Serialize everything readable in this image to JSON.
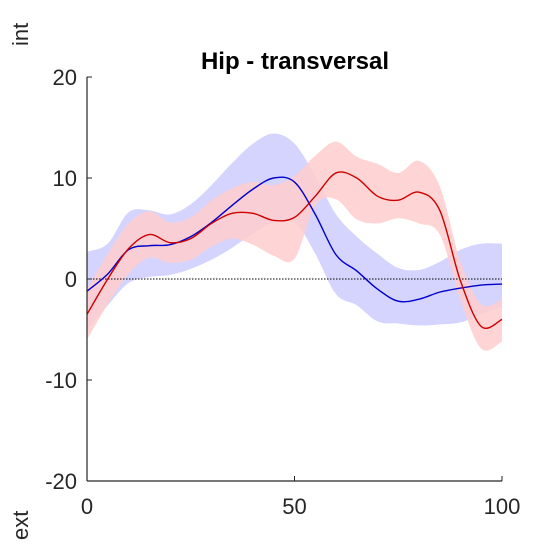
{
  "chart_data": {
    "type": "line",
    "title": "Hip - transversal",
    "xlabel": "",
    "ylabel": "",
    "side_label_top": "int",
    "side_label_bottom": "ext",
    "xlim": [
      0,
      100
    ],
    "ylim": [
      -20,
      20
    ],
    "xticks": [
      "0",
      "50",
      "100"
    ],
    "yticks": [
      "20",
      "10",
      "0",
      "-10",
      "-20"
    ],
    "grid": false,
    "legend": "none",
    "zero_line": true,
    "x": [
      0,
      5,
      10,
      15,
      20,
      25,
      30,
      35,
      40,
      45,
      50,
      55,
      60,
      65,
      70,
      75,
      80,
      85,
      90,
      95,
      100
    ],
    "series": [
      {
        "color": "#0000cc",
        "band_color": "#ccccff",
        "values": [
          -1.2,
          0.5,
          2.9,
          3.3,
          3.4,
          4.2,
          5.6,
          7.3,
          8.9,
          10.0,
          9.6,
          6.4,
          2.4,
          0.8,
          -1.0,
          -2.2,
          -2.0,
          -1.3,
          -0.9,
          -0.6,
          -0.5
        ],
        "upper": [
          2.7,
          3.5,
          6.6,
          6.8,
          6.4,
          7.4,
          9.3,
          11.5,
          13.4,
          14.4,
          13.4,
          10.2,
          6.4,
          4.2,
          2.5,
          1.1,
          0.9,
          1.7,
          2.9,
          3.5,
          3.5
        ],
        "lower": [
          -5.0,
          -2.6,
          -0.4,
          0.2,
          0.4,
          1.0,
          1.9,
          3.1,
          4.5,
          5.6,
          5.7,
          2.5,
          -1.5,
          -2.6,
          -4.2,
          -4.4,
          -4.6,
          -4.5,
          -4.3,
          -3.5,
          -2.7
        ]
      },
      {
        "color": "#cc0000",
        "band_color": "#ffcccc",
        "values": [
          -3.5,
          0.0,
          3.0,
          4.4,
          3.6,
          4.0,
          5.5,
          6.5,
          6.5,
          5.8,
          6.1,
          8.2,
          10.5,
          10.0,
          8.2,
          7.8,
          8.6,
          6.8,
          -0.2,
          -4.7,
          -4.0
        ],
        "upper": [
          -1.0,
          2.5,
          5.5,
          6.7,
          5.6,
          6.1,
          7.8,
          9.0,
          9.6,
          9.3,
          10.2,
          12.2,
          13.6,
          12.1,
          11.4,
          10.5,
          11.7,
          9.2,
          1.7,
          -2.5,
          -2.0
        ],
        "lower": [
          -6.0,
          -2.5,
          0.5,
          2.1,
          1.6,
          1.9,
          3.2,
          4.0,
          3.4,
          2.3,
          2.0,
          7.3,
          7.9,
          5.9,
          5.5,
          6.0,
          5.5,
          4.4,
          -2.1,
          -6.9,
          -6.2
        ]
      }
    ]
  }
}
